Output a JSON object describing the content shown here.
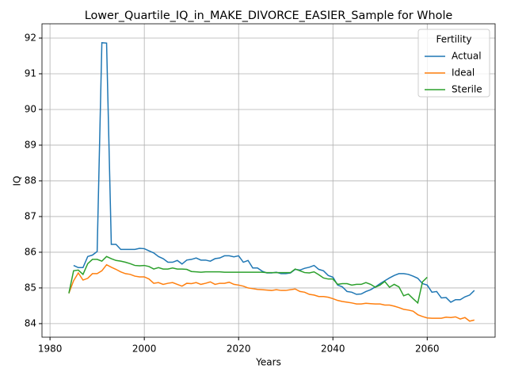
{
  "chart_data": {
    "type": "line",
    "title": "Lower_Quartile_IQ_in_MAKE_DIVORCE_EASIER_Sample for Whole",
    "xlabel": "Years",
    "ylabel": "IQ",
    "x": [
      1984,
      1985,
      1986,
      1987,
      1988,
      1989,
      1990,
      1991,
      1992,
      1993,
      1994,
      1995,
      1996,
      1997,
      1998,
      1999,
      2000,
      2001,
      2002,
      2003,
      2004,
      2005,
      2006,
      2007,
      2008,
      2009,
      2010,
      2011,
      2012,
      2013,
      2014,
      2015,
      2016,
      2017,
      2018,
      2019,
      2020,
      2021,
      2022,
      2023,
      2024,
      2025,
      2026,
      2027,
      2028,
      2029,
      2030,
      2031,
      2032,
      2033,
      2034,
      2035,
      2036,
      2037,
      2038,
      2039,
      2040,
      2041,
      2042,
      2043,
      2044,
      2045,
      2046,
      2047,
      2048,
      2049,
      2050,
      2051,
      2052,
      2053,
      2054,
      2055,
      2056,
      2057,
      2058,
      2059,
      2060,
      2061,
      2062,
      2063,
      2064,
      2065,
      2066,
      2067,
      2068,
      2069,
      2070
    ],
    "series": [
      {
        "name": "Actual",
        "color": "#1f77b4",
        "values": [
          null,
          85.63,
          85.57,
          85.57,
          85.88,
          85.92,
          86.02,
          91.87,
          91.86,
          86.22,
          86.22,
          86.08,
          86.08,
          86.08,
          86.08,
          86.11,
          86.1,
          86.04,
          85.98,
          85.88,
          85.82,
          85.72,
          85.72,
          85.77,
          85.67,
          85.78,
          85.8,
          85.84,
          85.78,
          85.78,
          85.75,
          85.82,
          85.84,
          85.9,
          85.9,
          85.87,
          85.9,
          85.72,
          85.77,
          85.56,
          85.56,
          85.47,
          85.42,
          85.42,
          85.44,
          85.4,
          85.4,
          85.42,
          85.52,
          85.5,
          85.55,
          85.58,
          85.63,
          85.52,
          85.48,
          85.35,
          85.3,
          85.08,
          85.03,
          84.9,
          84.88,
          84.82,
          84.83,
          84.9,
          84.95,
          85.03,
          85.12,
          85.2,
          85.28,
          85.35,
          85.4,
          85.4,
          85.38,
          85.33,
          85.27,
          85.12,
          85.08,
          84.88,
          84.9,
          84.72,
          84.73,
          84.6,
          84.67,
          84.67,
          84.75,
          84.8,
          84.93
        ]
      },
      {
        "name": "Ideal",
        "color": "#ff7f0e",
        "values": [
          84.85,
          85.2,
          85.42,
          85.22,
          85.27,
          85.4,
          85.4,
          85.48,
          85.65,
          85.58,
          85.52,
          85.45,
          85.4,
          85.38,
          85.33,
          85.31,
          85.31,
          85.25,
          85.13,
          85.15,
          85.1,
          85.13,
          85.15,
          85.1,
          85.05,
          85.13,
          85.12,
          85.15,
          85.1,
          85.13,
          85.17,
          85.1,
          85.13,
          85.13,
          85.16,
          85.1,
          85.08,
          85.05,
          85.0,
          84.98,
          84.96,
          84.95,
          84.94,
          84.93,
          84.95,
          84.93,
          84.93,
          84.95,
          84.97,
          84.9,
          84.88,
          84.82,
          84.8,
          84.76,
          84.76,
          84.74,
          84.7,
          84.65,
          84.62,
          84.6,
          84.58,
          84.55,
          84.55,
          84.57,
          84.56,
          84.55,
          84.55,
          84.52,
          84.52,
          84.49,
          84.45,
          84.4,
          84.38,
          84.35,
          84.25,
          84.2,
          84.16,
          84.15,
          84.15,
          84.15,
          84.18,
          84.17,
          84.19,
          84.13,
          84.17,
          84.07,
          84.1
        ]
      },
      {
        "name": "Sterile",
        "color": "#2ca02c",
        "values": [
          84.85,
          85.48,
          85.5,
          85.38,
          85.68,
          85.8,
          85.8,
          85.75,
          85.88,
          85.82,
          85.77,
          85.75,
          85.72,
          85.68,
          85.63,
          85.62,
          85.63,
          85.6,
          85.53,
          85.57,
          85.53,
          85.53,
          85.56,
          85.53,
          85.53,
          85.52,
          85.46,
          85.45,
          85.44,
          85.45,
          85.45,
          85.45,
          85.45,
          85.44,
          85.44,
          85.44,
          85.44,
          85.44,
          85.44,
          85.44,
          85.44,
          85.44,
          85.43,
          85.43,
          85.43,
          85.43,
          85.43,
          85.43,
          85.53,
          85.48,
          85.43,
          85.42,
          85.45,
          85.37,
          85.28,
          85.25,
          85.25,
          85.1,
          85.12,
          85.12,
          85.08,
          85.1,
          85.1,
          85.15,
          85.1,
          85.02,
          85.08,
          85.18,
          85.02,
          85.1,
          85.03,
          84.78,
          84.83,
          84.7,
          84.58,
          85.17,
          85.3,
          null,
          null,
          null,
          null,
          null,
          null,
          null,
          null,
          null,
          null
        ]
      }
    ],
    "legend_title": "Fertility",
    "legend": "upper right",
    "grid": true,
    "xlim": [
      1978.3,
      2074.4
    ],
    "xticks": [
      1980,
      2000,
      2020,
      2040,
      2060
    ],
    "ylim": [
      83.62,
      92.4
    ],
    "yticks": [
      84,
      85,
      86,
      87,
      88,
      89,
      90,
      91,
      92
    ]
  }
}
